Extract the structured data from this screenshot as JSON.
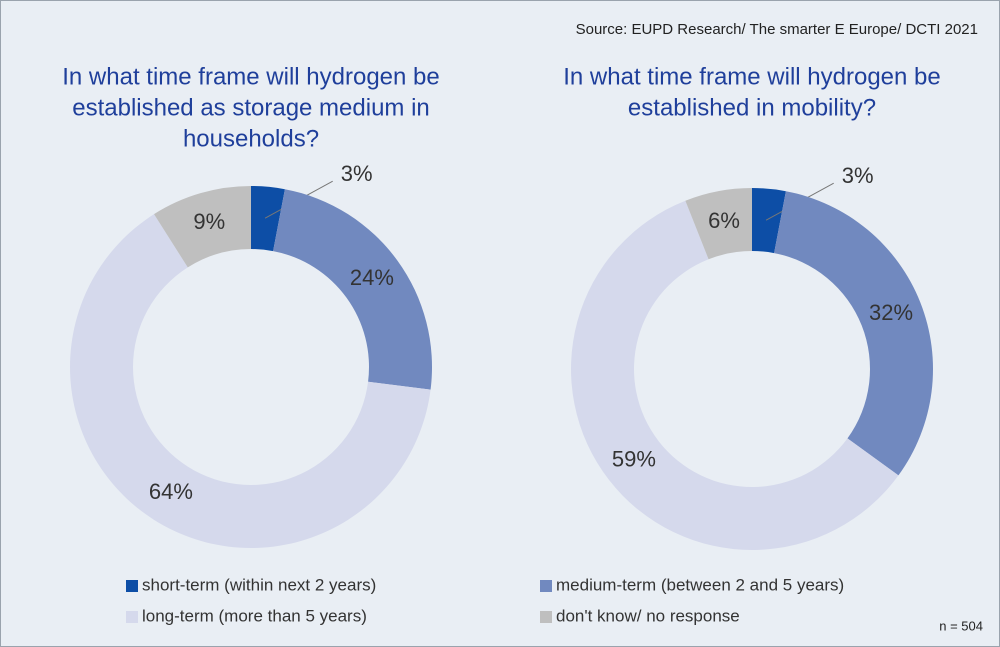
{
  "source": "Source: EUPD Research/ The smarter E Europe/ DCTI 2021",
  "note": "n = 504",
  "chart_data": [
    {
      "type": "pie",
      "title": [
        "In what time frame will hydrogen be",
        "established as storage medium in",
        "households?"
      ],
      "categories": [
        "short-term (within next 2 years)",
        "medium-term (between 2 and 5 years)",
        "long-term (more than 5 years)",
        "don't know/ no response"
      ],
      "values": [
        3,
        24,
        64,
        9
      ],
      "value_labels": [
        "3%",
        "24%",
        "64%",
        "9%"
      ],
      "colors": [
        "#0d4ea6",
        "#7189bf",
        "#d5d9ec",
        "#bfbfbf"
      ]
    },
    {
      "type": "pie",
      "title": [
        "In what time frame will hydrogen be",
        "established in mobility?"
      ],
      "categories": [
        "short-term (within next 2 years)",
        "medium-term (between 2 and 5 years)",
        "long-term (more than 5 years)",
        "don't know/ no response"
      ],
      "values": [
        3,
        32,
        59,
        6
      ],
      "value_labels": [
        "3%",
        "32%",
        "59%",
        "6%"
      ],
      "colors": [
        "#0d4ea6",
        "#7189bf",
        "#d5d9ec",
        "#bfbfbf"
      ]
    }
  ]
}
